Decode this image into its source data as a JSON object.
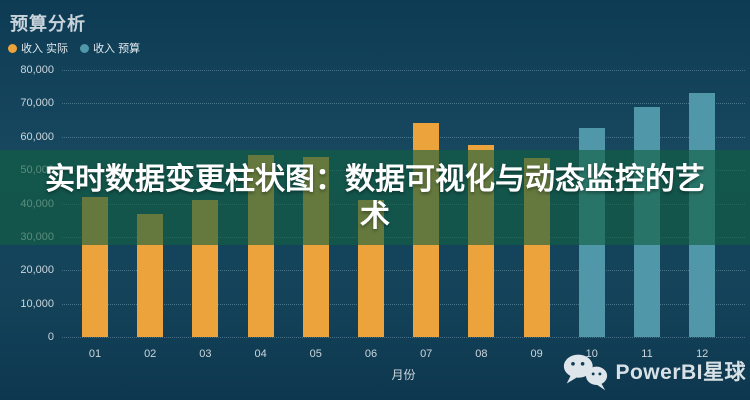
{
  "page": {
    "title": "预算分析"
  },
  "legend": {
    "items": [
      {
        "label": "收入 实际",
        "color": "#EDA33C"
      },
      {
        "label": "收入 预算",
        "color": "#4F97A9"
      }
    ]
  },
  "overlay": {
    "title": "实时数据变更柱状图：数据可视化与动态监控的艺术"
  },
  "watermark": {
    "icon": "wechat-icon",
    "text": "PowerBI星球"
  },
  "colors": {
    "background": "#11405A",
    "band_overlay": "rgba(18,96,64,0.62)",
    "actual_bar": "#EDA33C",
    "budget_bar": "#4F97A9",
    "axis_text": "#CCD6DC",
    "title_text": "#C9D3DB",
    "gridline": "rgba(170,205,220,0.35)"
  },
  "chart_data": {
    "type": "bar",
    "title": "预算分析",
    "xlabel": "月份",
    "ylabel": "",
    "categories": [
      "01",
      "02",
      "03",
      "04",
      "05",
      "06",
      "07",
      "08",
      "09",
      "10",
      "11",
      "12"
    ],
    "series": [
      {
        "name": "收入 实际",
        "color": "#EDA33C",
        "values": [
          42000,
          37000,
          41000,
          54500,
          54000,
          41000,
          64000,
          57500,
          53500,
          null,
          null,
          null
        ]
      },
      {
        "name": "收入 预算",
        "color": "#4F97A9",
        "values": [
          null,
          null,
          null,
          null,
          null,
          null,
          null,
          null,
          null,
          62500,
          69000,
          73000
        ]
      }
    ],
    "ylim": [
      0,
      80000
    ],
    "yticks": [
      0,
      10000,
      20000,
      30000,
      40000,
      50000,
      60000,
      70000,
      80000
    ],
    "grid": "horizontal-dotted",
    "legend_position": "top-left"
  }
}
